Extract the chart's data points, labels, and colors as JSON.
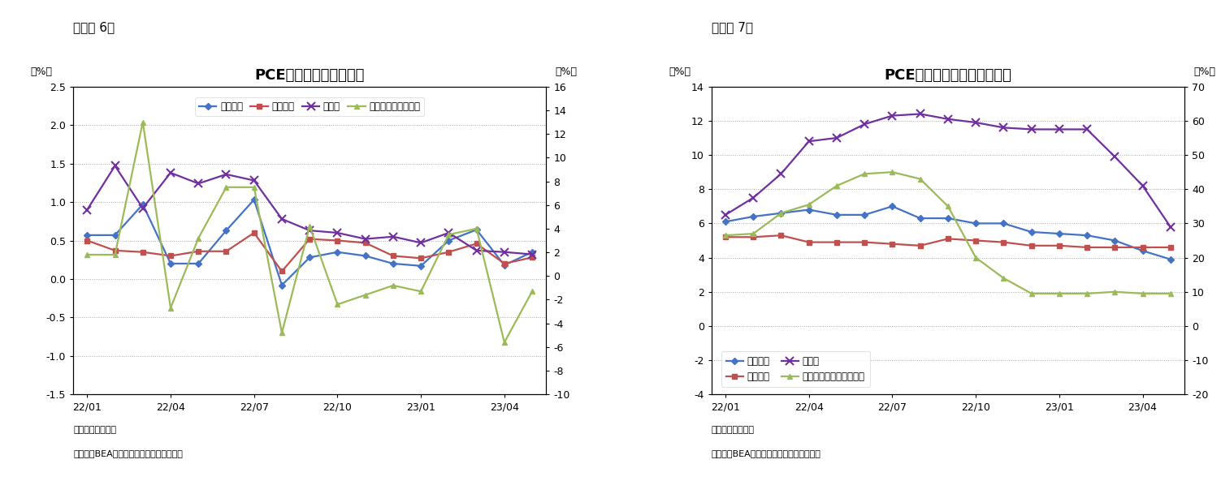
{
  "fig6": {
    "title": "PCE価格指数（前月比）",
    "label_pct_left": "（%）",
    "label_pct_right": "（%）",
    "header": "（図表 6）",
    "ylim_left": [
      -1.5,
      2.5
    ],
    "ylim_right": [
      -10,
      16
    ],
    "yticks_left": [
      -1.5,
      -1.0,
      -0.5,
      0.0,
      0.5,
      1.0,
      1.5,
      2.0,
      2.5
    ],
    "yticks_right": [
      -10,
      -8,
      -6,
      -4,
      -2,
      0,
      2,
      4,
      6,
      8,
      10,
      12,
      14,
      16
    ],
    "xtick_pos": [
      0,
      3,
      6,
      9,
      12,
      15
    ],
    "xtick_labels": [
      "22/01",
      "22/04",
      "22/07",
      "22/10",
      "23/01",
      "23/04"
    ],
    "note1": "（注）季節調整済",
    "note2": "（資料）BEAよりニッセイ基礎研究所作成",
    "n_points": 17,
    "sougo": [
      0.57,
      0.57,
      0.97,
      0.2,
      0.2,
      0.63,
      1.03,
      -0.08,
      0.28,
      0.35,
      0.3,
      0.2,
      0.17,
      0.5,
      0.64,
      0.18,
      0.35
    ],
    "core": [
      0.5,
      0.37,
      0.35,
      0.3,
      0.36,
      0.36,
      0.6,
      0.1,
      0.52,
      0.5,
      0.47,
      0.3,
      0.27,
      0.35,
      0.46,
      0.2,
      0.28
    ],
    "food": [
      0.9,
      1.47,
      0.92,
      1.38,
      1.24,
      1.36,
      1.28,
      0.78,
      0.63,
      0.6,
      0.52,
      0.55,
      0.47,
      0.6,
      0.37,
      0.35,
      0.32
    ],
    "energy": [
      1.8,
      1.8,
      13.0,
      -2.7,
      3.2,
      7.5,
      7.5,
      -4.8,
      4.2,
      -2.4,
      -1.6,
      -0.8,
      -1.3,
      3.5,
      4.0,
      -5.6,
      -1.3
    ],
    "label_sougo": "総合指数",
    "label_core": "コア指数",
    "label_food": "食料品",
    "label_energy": "エネルギー（右軸）"
  },
  "fig7": {
    "title": "PCE価格指数（前年同月比）",
    "label_pct_left": "（%）",
    "label_pct_right": "（%）",
    "header": "（図表 7）",
    "ylim_left": [
      -4,
      14
    ],
    "ylim_right": [
      -20,
      70
    ],
    "yticks_left": [
      -4,
      -2,
      0,
      2,
      4,
      6,
      8,
      10,
      12,
      14
    ],
    "yticks_right": [
      -20,
      -10,
      0,
      10,
      20,
      30,
      40,
      50,
      60,
      70
    ],
    "xtick_pos": [
      0,
      3,
      6,
      9,
      12,
      15
    ],
    "xtick_labels": [
      "22/01",
      "22/04",
      "22/07",
      "22/10",
      "23/01",
      "23/04"
    ],
    "note1": "（注）季節調整済",
    "note2": "（資料）BEAよりニッセイ基礎研究所作成",
    "n_points": 17,
    "sougo": [
      6.1,
      6.4,
      6.6,
      6.8,
      6.5,
      6.5,
      7.0,
      6.3,
      6.3,
      6.0,
      6.0,
      5.5,
      5.4,
      5.3,
      5.0,
      4.4,
      3.9
    ],
    "core": [
      5.2,
      5.2,
      5.3,
      4.9,
      4.9,
      4.9,
      4.8,
      4.7,
      5.1,
      5.0,
      4.9,
      4.7,
      4.7,
      4.6,
      4.6,
      4.6,
      4.6
    ],
    "food": [
      6.5,
      7.5,
      8.9,
      10.8,
      11.0,
      11.8,
      12.3,
      12.4,
      12.1,
      11.9,
      11.6,
      11.5,
      11.5,
      11.5,
      9.9,
      8.2,
      5.8
    ],
    "energy": [
      26.5,
      27.0,
      33.0,
      35.5,
      41.0,
      44.5,
      45.0,
      43.0,
      35.0,
      20.0,
      14.0,
      9.5,
      9.5,
      9.5,
      10.0,
      9.5,
      9.5
    ],
    "label_sougo": "総合指数",
    "label_core": "コア指数",
    "label_food": "食料品",
    "label_energy": "エネルギー関連（右軸）"
  },
  "color_sougo": "#4472C4",
  "color_core": "#C0504D",
  "color_food": "#7030A0",
  "color_energy": "#9BBB59",
  "bg_color": "#FFFFFF",
  "grid_color": "#AAAAAA"
}
